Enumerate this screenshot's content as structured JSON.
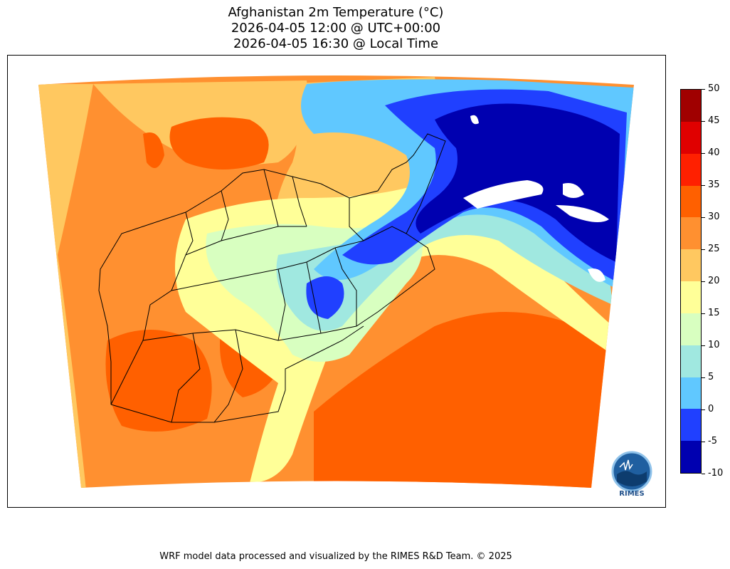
{
  "map": {
    "title_line1": "Afghanistan 2m Temperature (°C)",
    "title_line2": "2026-04-05 12:00 @ UTC+00:00",
    "title_line3": "2026-04-05 16:30 @ Local Time",
    "variable": "2m Temperature",
    "unit": "°C",
    "region": "Afghanistan"
  },
  "colorbar": {
    "levels": [
      "50",
      "45",
      "40",
      "35",
      "30",
      "25",
      "20",
      "15",
      "10",
      "5",
      "0",
      "-5",
      "-10"
    ],
    "colors": [
      "#a00000",
      "#e00000",
      "#ff2000",
      "#ff6000",
      "#ff9030",
      "#ffc860",
      "#ffff98",
      "#d8ffc0",
      "#a0e8e0",
      "#60c8ff",
      "#2040ff",
      "#0000b0"
    ]
  },
  "logo": {
    "text": "RIMES"
  },
  "footer": {
    "credit": "WRF model data processed and visualized by the RIMES R&D Team. © 2025"
  }
}
